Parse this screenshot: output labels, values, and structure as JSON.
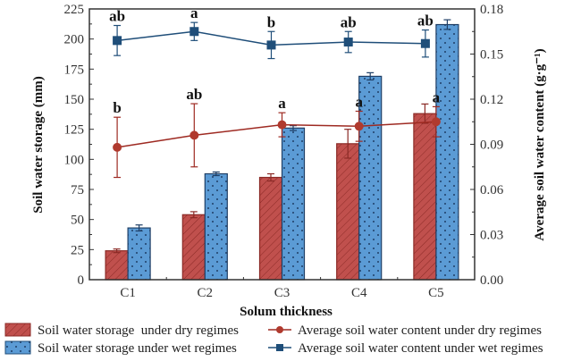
{
  "chart_data": {
    "type": "bar",
    "title": "",
    "xlabel": "Solum thickness",
    "ylabel": "Soil water storage (mm)",
    "y2label": "Average soil water content (g·g⁻¹)",
    "categories": [
      "C1",
      "C2",
      "C3",
      "C4",
      "C5"
    ],
    "ylim": [
      0,
      225
    ],
    "yticks": [
      0,
      25,
      50,
      75,
      100,
      125,
      150,
      175,
      200,
      225
    ],
    "y2lim": [
      0,
      0.18
    ],
    "y2ticks": [
      "0.00",
      "0.03",
      "0.06",
      "0.09",
      "0.12",
      "0.15",
      "0.18"
    ],
    "grid": false,
    "legend_position": "bottom",
    "bar_series": [
      {
        "name": "Soil water storage  under dry regimes",
        "color": "#c0504d",
        "pattern": "hatch",
        "values": [
          24,
          54,
          85,
          113,
          138
        ],
        "errors": [
          1.5,
          2.5,
          3,
          12,
          8
        ]
      },
      {
        "name": "Soil water storage under wet regimes",
        "color": "#5b9bd5",
        "pattern": "dots",
        "values": [
          43,
          88,
          126,
          169,
          212
        ],
        "errors": [
          2.5,
          1.5,
          2,
          3,
          4
        ]
      }
    ],
    "line_series": [
      {
        "name": "Average soil water content under dry regimes",
        "color": "#9e2a22",
        "marker": "circle",
        "axis": "right",
        "values": [
          0.088,
          0.096,
          0.103,
          0.102,
          0.105
        ],
        "errors": [
          0.02,
          0.021,
          0.008,
          0.01,
          0.01
        ],
        "labels": [
          "b",
          "ab",
          "a",
          "a",
          "a"
        ]
      },
      {
        "name": "Average soil water content under wet regimes",
        "color": "#1f4e79",
        "marker": "square",
        "axis": "right",
        "values": [
          0.159,
          0.165,
          0.156,
          0.158,
          0.157
        ],
        "errors": [
          0.01,
          0.006,
          0.009,
          0.007,
          0.009
        ],
        "labels": [
          "ab",
          "a",
          "b",
          "ab",
          "ab"
        ]
      }
    ]
  },
  "legend": {
    "items": [
      "Soil water storage  under dry regimes",
      "Soil water storage under wet regimes",
      "Average soil water content under dry regimes",
      "Average soil water content under wet regimes"
    ]
  }
}
